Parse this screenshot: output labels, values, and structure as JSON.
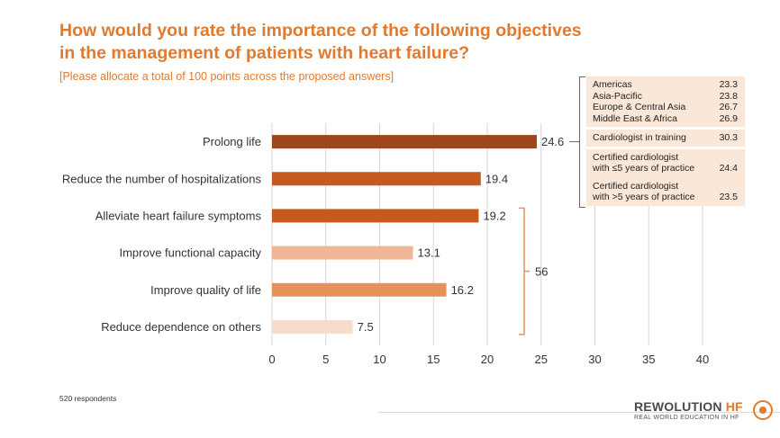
{
  "header": {
    "title_line1": "How would you rate the importance of the following objectives",
    "title_line2": "in the management of patients with heart failure?",
    "subtitle": "[Please allocate a total of 100 points across the proposed answers]"
  },
  "chart_data": {
    "type": "bar",
    "orientation": "horizontal",
    "categories": [
      "Prolong life",
      "Reduce the number of hospitalizations",
      "Alleviate heart failure symptoms",
      "Improve functional capacity",
      "Improve quality of life",
      "Reduce dependence on others"
    ],
    "values": [
      24.6,
      19.4,
      19.2,
      13.1,
      16.2,
      7.5
    ],
    "value_labels": [
      "24.6",
      "19.4",
      "19.2",
      "13.1",
      "16.2",
      "7.5"
    ],
    "bar_colors": [
      "#A0461D",
      "#C65A1E",
      "#C65A1E",
      "#EFB797",
      "#E5925A",
      "#F7DCCB"
    ],
    "xlim": [
      0,
      40
    ],
    "x_ticks": [
      "0",
      "5",
      "10",
      "15",
      "20",
      "25",
      "30",
      "35",
      "40"
    ],
    "grid": true,
    "brace": {
      "label": "56",
      "from_category": "Alleviate heart failure symptoms",
      "to_category": "Reduce dependence on others",
      "color": "#E5925A"
    }
  },
  "side_panel": {
    "regions": [
      {
        "label": "Americas",
        "value": "23.3"
      },
      {
        "label": "Asia-Pacific",
        "value": "23.8"
      },
      {
        "label": "Europe & Central Asia",
        "value": "26.7"
      },
      {
        "label": "Middle East & Africa",
        "value": "26.9"
      }
    ],
    "specialties": [
      {
        "label_line1": "Cardiologist in training",
        "label_line2": "",
        "value": "30.3"
      },
      {
        "label_line1": "Certified cardiologist",
        "label_line2": "with ≤5 years of practice",
        "value": "24.4"
      },
      {
        "label_line1": "Certified cardiologist",
        "label_line2": "with >5 years of practice",
        "value": "23.5"
      }
    ]
  },
  "footnote": "520 respondents",
  "logo": {
    "main": "REWOLUTION ",
    "main_accent": "HF",
    "sub": "REAL WORLD EDUCATION IN HF"
  }
}
